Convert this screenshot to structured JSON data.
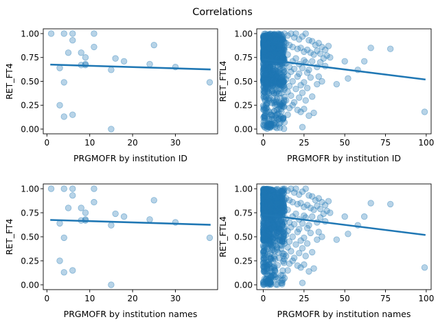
{
  "figure": {
    "suptitle": "Correlations"
  },
  "chart_data": [
    {
      "type": "scatter",
      "xlabel": "PRGMOFR by institution ID",
      "ylabel": "RET_FT4",
      "xlim": [
        -0.85,
        39.85
      ],
      "ylim": [
        -0.05,
        1.05
      ],
      "xticks": [
        0,
        10,
        20,
        30
      ],
      "yticks": [
        0.0,
        0.25,
        0.5,
        0.75,
        1.0
      ],
      "grid": false,
      "points": {
        "x": [
          1,
          3,
          3,
          4,
          4,
          5,
          6,
          6,
          6,
          8,
          8,
          9,
          9,
          9,
          11,
          11,
          15,
          15,
          16,
          18,
          24,
          25,
          30,
          38
        ],
        "y": [
          1.0,
          0.64,
          0.25,
          1.0,
          0.13,
          0.8,
          1.0,
          0.93,
          0.15,
          0.67,
          0.8,
          0.75,
          0.67,
          0.68,
          1.0,
          0.86,
          0.62,
          0.0,
          0.74,
          0.71,
          0.68,
          0.88,
          0.65,
          0.49
        ]
      },
      "extra_points": {
        "x": [
          4
        ],
        "y": [
          0.49
        ]
      },
      "fit_line": {
        "x": [
          1,
          38
        ],
        "y": [
          0.675,
          0.625
        ]
      }
    },
    {
      "type": "scatter",
      "xlabel": "PRGMOFR by institution ID",
      "ylabel": "RET_FTL4",
      "xlim": [
        -4.0,
        103.0
      ],
      "ylim": [
        -0.05,
        1.05
      ],
      "xticks": [
        0,
        25,
        50,
        75,
        100
      ],
      "yticks": [
        0.0,
        0.25,
        0.5,
        0.75,
        1.0
      ],
      "grid": false,
      "dense_cluster": {
        "x_range": [
          0,
          13
        ],
        "y_range": [
          0.0,
          1.0
        ],
        "approx_count": 900
      },
      "points": {
        "x": [
          13,
          15,
          17,
          19,
          20,
          22,
          24,
          26,
          28,
          30,
          32,
          34,
          36,
          38,
          40,
          14,
          16,
          18,
          21,
          23,
          25,
          27,
          29,
          31,
          33,
          35,
          37,
          39,
          41,
          12,
          15,
          20,
          25,
          30,
          35,
          14,
          18,
          22,
          26,
          33,
          38,
          16,
          19,
          24,
          28,
          13,
          17,
          22,
          27,
          34,
          15,
          21,
          29,
          36,
          14,
          18,
          25,
          33,
          16,
          23,
          13,
          20,
          27,
          15,
          24,
          17,
          22,
          30,
          14,
          19,
          26,
          18,
          16,
          21,
          23,
          15,
          28,
          12,
          13,
          24,
          25,
          31,
          52,
          58,
          62,
          66,
          78,
          99,
          45,
          50
        ],
        "y": [
          1.0,
          0.98,
          1.0,
          0.96,
          1.0,
          0.94,
          0.97,
          1.0,
          0.93,
          0.92,
          0.88,
          0.9,
          0.86,
          0.83,
          0.87,
          0.9,
          0.88,
          0.86,
          0.84,
          0.85,
          0.81,
          0.83,
          0.8,
          0.78,
          0.82,
          0.79,
          0.74,
          0.77,
          0.75,
          0.76,
          0.78,
          0.74,
          0.72,
          0.71,
          0.7,
          0.69,
          0.71,
          0.68,
          0.7,
          0.65,
          0.66,
          0.65,
          0.63,
          0.64,
          0.62,
          0.6,
          0.6,
          0.58,
          0.59,
          0.55,
          0.56,
          0.55,
          0.54,
          0.5,
          0.52,
          0.5,
          0.49,
          0.47,
          0.45,
          0.46,
          0.43,
          0.42,
          0.43,
          0.39,
          0.38,
          0.35,
          0.33,
          0.34,
          0.3,
          0.28,
          0.3,
          0.25,
          0.22,
          0.2,
          0.18,
          0.15,
          0.14,
          0.1,
          0.07,
          0.02,
          0.21,
          0.17,
          0.53,
          0.62,
          0.71,
          0.85,
          0.84,
          0.18,
          0.47,
          0.71
        ]
      },
      "fit_line": {
        "x": [
          0,
          99
        ],
        "y": [
          0.73,
          0.52
        ]
      }
    },
    {
      "type": "scatter",
      "xlabel": "PRGMOFR by institution names",
      "ylabel": "RET_FT4",
      "xlim": [
        -0.85,
        39.85
      ],
      "ylim": [
        -0.05,
        1.05
      ],
      "xticks": [
        0,
        10,
        20,
        30
      ],
      "yticks": [
        0.0,
        0.25,
        0.5,
        0.75,
        1.0
      ],
      "grid": false,
      "points": {
        "x": [
          1,
          3,
          3,
          4,
          4,
          5,
          6,
          6,
          6,
          8,
          8,
          9,
          9,
          9,
          11,
          11,
          15,
          15,
          16,
          18,
          24,
          25,
          30,
          38
        ],
        "y": [
          1.0,
          0.64,
          0.25,
          1.0,
          0.13,
          0.8,
          1.0,
          0.93,
          0.15,
          0.67,
          0.8,
          0.75,
          0.67,
          0.68,
          1.0,
          0.86,
          0.62,
          0.0,
          0.74,
          0.71,
          0.68,
          0.88,
          0.65,
          0.49
        ]
      },
      "extra_points": {
        "x": [
          4
        ],
        "y": [
          0.49
        ]
      },
      "fit_line": {
        "x": [
          1,
          38
        ],
        "y": [
          0.675,
          0.625
        ]
      }
    },
    {
      "type": "scatter",
      "xlabel": "PRGMOFR by institution names",
      "ylabel": "RET_FTL4",
      "xlim": [
        -4.0,
        103.0
      ],
      "ylim": [
        -0.05,
        1.05
      ],
      "xticks": [
        0,
        25,
        50,
        75,
        100
      ],
      "yticks": [
        0.0,
        0.25,
        0.5,
        0.75,
        1.0
      ],
      "grid": false,
      "dense_cluster": {
        "x_range": [
          0,
          13
        ],
        "y_range": [
          0.0,
          1.0
        ],
        "approx_count": 900
      },
      "points": {
        "x": [
          13,
          15,
          17,
          19,
          20,
          22,
          24,
          26,
          28,
          30,
          32,
          34,
          36,
          38,
          40,
          14,
          16,
          18,
          21,
          23,
          25,
          27,
          29,
          31,
          33,
          35,
          37,
          39,
          41,
          12,
          15,
          20,
          25,
          30,
          35,
          14,
          18,
          22,
          26,
          33,
          38,
          16,
          19,
          24,
          28,
          13,
          17,
          22,
          27,
          34,
          15,
          21,
          29,
          36,
          14,
          18,
          25,
          33,
          16,
          23,
          13,
          20,
          27,
          15,
          24,
          17,
          22,
          30,
          14,
          19,
          26,
          18,
          16,
          21,
          23,
          15,
          28,
          12,
          13,
          24,
          25,
          31,
          52,
          58,
          62,
          66,
          78,
          99,
          45,
          50
        ],
        "y": [
          1.0,
          0.98,
          1.0,
          0.96,
          1.0,
          0.94,
          0.97,
          1.0,
          0.93,
          0.92,
          0.88,
          0.9,
          0.86,
          0.83,
          0.87,
          0.9,
          0.88,
          0.86,
          0.84,
          0.85,
          0.81,
          0.83,
          0.8,
          0.78,
          0.82,
          0.79,
          0.74,
          0.77,
          0.75,
          0.76,
          0.78,
          0.74,
          0.72,
          0.71,
          0.7,
          0.69,
          0.71,
          0.68,
          0.7,
          0.65,
          0.66,
          0.65,
          0.63,
          0.64,
          0.62,
          0.6,
          0.6,
          0.58,
          0.59,
          0.55,
          0.56,
          0.55,
          0.54,
          0.5,
          0.52,
          0.5,
          0.49,
          0.47,
          0.45,
          0.46,
          0.43,
          0.42,
          0.43,
          0.39,
          0.38,
          0.35,
          0.33,
          0.34,
          0.3,
          0.28,
          0.3,
          0.25,
          0.22,
          0.2,
          0.18,
          0.15,
          0.14,
          0.1,
          0.07,
          0.02,
          0.21,
          0.17,
          0.53,
          0.62,
          0.71,
          0.85,
          0.84,
          0.18,
          0.47,
          0.71
        ]
      },
      "fit_line": {
        "x": [
          0,
          99
        ],
        "y": [
          0.73,
          0.52
        ]
      }
    }
  ],
  "colors": {
    "point_fill": "#1f77b4",
    "fit_line": "#1f77b4",
    "axis": "#000000"
  }
}
